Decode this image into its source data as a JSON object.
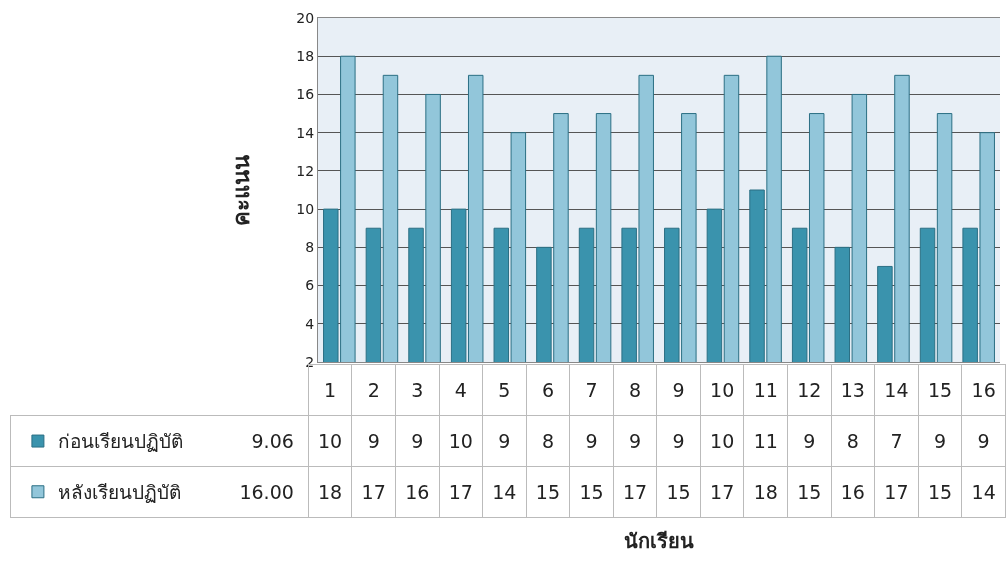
{
  "chart_data": {
    "type": "bar",
    "ylabel": "คะแนน",
    "categories": [
      "1",
      "2",
      "3",
      "4",
      "5",
      "6",
      "7",
      "8",
      "9",
      "10",
      "11",
      "12",
      "13",
      "14",
      "15",
      "16"
    ],
    "series": [
      {
        "name": "ก่อนเรียนปฏิบัติ",
        "color": "#3a93ad",
        "values": [
          10,
          9,
          9,
          10,
          9,
          8,
          9,
          9,
          9,
          10,
          11,
          9,
          8,
          7,
          9,
          9
        ]
      },
      {
        "name": "หลังเรียนปฏิบัติ",
        "color": "#92c6da",
        "values": [
          18,
          17,
          16,
          17,
          14,
          15,
          15,
          17,
          15,
          17,
          18,
          15,
          16,
          17,
          15,
          14
        ]
      }
    ],
    "annotations": [
      "9.06",
      "16.00",
      "นักเรียน"
    ],
    "ylim": [
      2,
      20
    ],
    "yticks": [
      2,
      4,
      6,
      8,
      10,
      12,
      14,
      16,
      18,
      20
    ],
    "grid": "y",
    "legend": "bottom",
    "data_labels": true
  }
}
